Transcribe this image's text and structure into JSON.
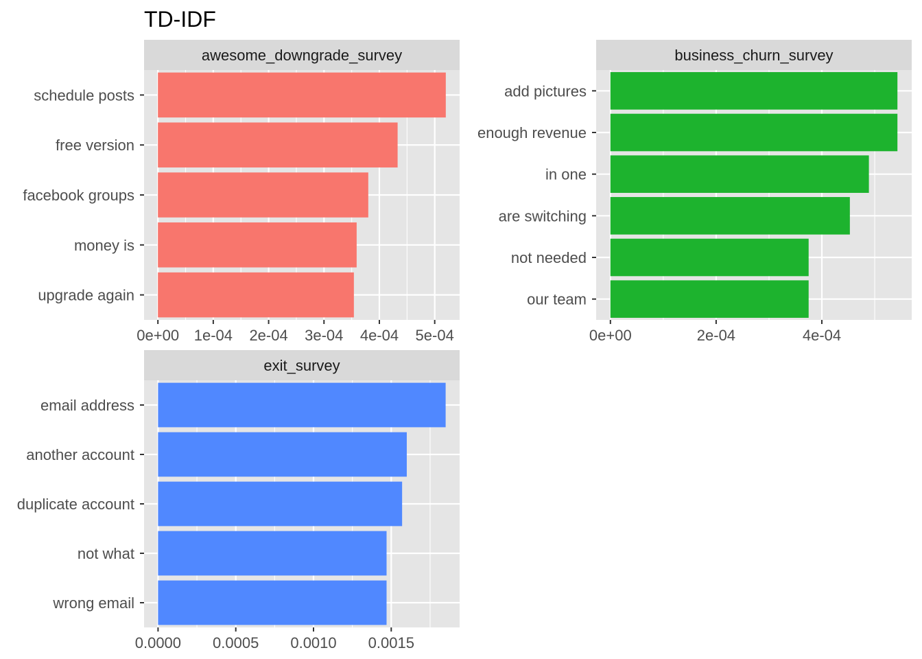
{
  "title": "TD-IDF",
  "colors": {
    "panel_bg": "#E5E5E5",
    "grid": "#FFFFFF",
    "strip_bg": "#D9D9D9",
    "axis_text": "#4D4D4D",
    "strip_text": "#1A1A1A"
  },
  "chart_data": [
    {
      "type": "bar",
      "orientation": "horizontal",
      "panel": "awesome_downgrade_survey",
      "color": "#F8766D",
      "categories": [
        "schedule posts",
        "free version",
        "facebook groups",
        "money is",
        "upgrade again"
      ],
      "values": [
        0.00052,
        0.000433,
        0.00038,
        0.000359,
        0.000354
      ],
      "xlim": [
        -2.5e-05,
        0.000545
      ],
      "ticks": [
        {
          "value": 0,
          "label": "0e+00"
        },
        {
          "value": 0.0001,
          "label": "1e-04"
        },
        {
          "value": 0.0002,
          "label": "2e-04"
        },
        {
          "value": 0.0003,
          "label": "3e-04"
        },
        {
          "value": 0.0004,
          "label": "4e-04"
        },
        {
          "value": 0.0005,
          "label": "5e-04"
        }
      ],
      "grid": true
    },
    {
      "type": "bar",
      "orientation": "horizontal",
      "panel": "business_churn_survey",
      "color": "#1DB32E",
      "categories": [
        "add pictures",
        "enough revenue",
        "in one",
        "are switching",
        "not needed",
        "our team"
      ],
      "values": [
        0.000543,
        0.000543,
        0.000489,
        0.000453,
        0.000375,
        0.000375
      ],
      "xlim": [
        -2.7e-05,
        0.00057
      ],
      "ticks": [
        {
          "value": 0,
          "label": "0e+00"
        },
        {
          "value": 0.0002,
          "label": "2e-04"
        },
        {
          "value": 0.0004,
          "label": "4e-04"
        }
      ],
      "grid": true
    },
    {
      "type": "bar",
      "orientation": "horizontal",
      "panel": "exit_survey",
      "color": "#5088FF",
      "categories": [
        "email address",
        "another account",
        "duplicate account",
        "not what",
        "wrong email"
      ],
      "values": [
        0.00185,
        0.0016,
        0.00157,
        0.00147,
        0.00147
      ],
      "xlim": [
        -9e-05,
        0.00194
      ],
      "ticks": [
        {
          "value": 0,
          "label": "0.0000"
        },
        {
          "value": 0.0005,
          "label": "0.0005"
        },
        {
          "value": 0.001,
          "label": "0.0010"
        },
        {
          "value": 0.0015,
          "label": "0.0015"
        }
      ],
      "grid": true
    }
  ]
}
